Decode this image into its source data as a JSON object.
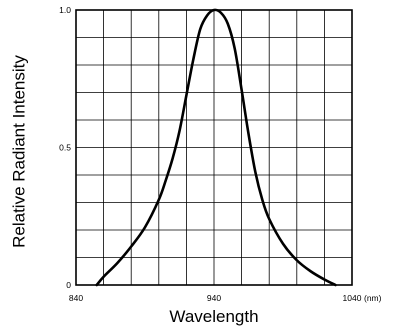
{
  "chart_data": {
    "type": "line",
    "title": "",
    "xlabel": "Wavelength",
    "ylabel": "Relative Radiant Intensity",
    "x_unit": "(nm)",
    "xlim": [
      840,
      1040
    ],
    "ylim": [
      0,
      1.0
    ],
    "x_tick_labels": [
      {
        "value": 840,
        "label": "840"
      },
      {
        "value": 940,
        "label": "940"
      },
      {
        "value": 1040,
        "label": "1040"
      }
    ],
    "y_tick_labels": [
      {
        "value": 0,
        "label": "0"
      },
      {
        "value": 0.5,
        "label": "0.5"
      },
      {
        "value": 1.0,
        "label": "1.0"
      }
    ],
    "grid": true,
    "grid_x_step": 20,
    "grid_y_step": 0.1,
    "series": [
      {
        "points": [
          [
            855,
            0.0
          ],
          [
            860,
            0.03
          ],
          [
            870,
            0.08
          ],
          [
            880,
            0.14
          ],
          [
            890,
            0.21
          ],
          [
            900,
            0.31
          ],
          [
            905,
            0.38
          ],
          [
            910,
            0.46
          ],
          [
            915,
            0.56
          ],
          [
            920,
            0.69
          ],
          [
            925,
            0.82
          ],
          [
            930,
            0.93
          ],
          [
            935,
            0.98
          ],
          [
            940,
            1.0
          ],
          [
            945,
            0.99
          ],
          [
            950,
            0.95
          ],
          [
            955,
            0.86
          ],
          [
            960,
            0.71
          ],
          [
            965,
            0.55
          ],
          [
            970,
            0.41
          ],
          [
            975,
            0.31
          ],
          [
            980,
            0.24
          ],
          [
            990,
            0.15
          ],
          [
            1000,
            0.09
          ],
          [
            1010,
            0.05
          ],
          [
            1020,
            0.02
          ],
          [
            1028,
            0.0
          ]
        ]
      }
    ]
  }
}
